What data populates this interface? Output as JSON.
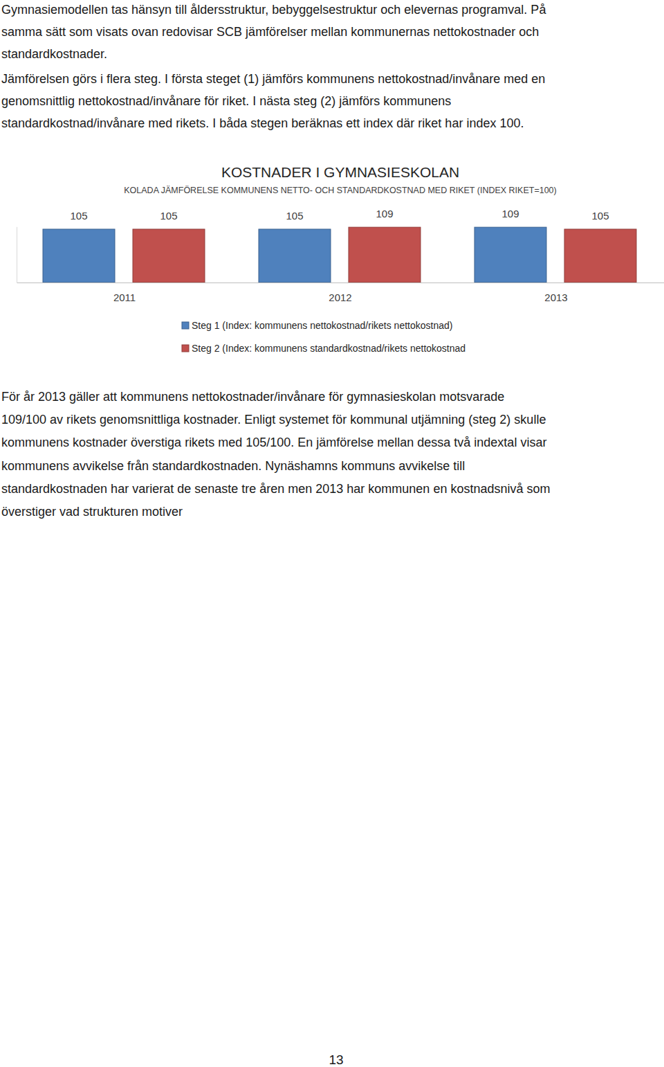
{
  "paragraphs_top": [
    [
      "Gymnasiemodellen tas hänsyn till åldersstruktur, bebyggelsestruktur och elevernas programval. På",
      "samma sätt som visats ovan redovisar SCB jämförelser mellan kommunernas nettokostnader och",
      "standardkostnader."
    ],
    [
      "Jämförelsen görs i flera steg. I första steget (1) jämförs kommunens nettokostnad/invånare med en",
      "genomsnittlig nettokostnad/invånare för riket. I nästa steg (2) jämförs kommunens",
      "standardkostnad/invånare med rikets. I båda stegen beräknas ett index där riket har index 100."
    ]
  ],
  "chart_data": {
    "type": "bar",
    "title": "KOSTNADER I GYMNASIESKOLAN",
    "subtitle": "KOLADA JÄMFÖRELSE KOMMUNENS NETTO- OCH STANDARDKOSTNAD MED RIKET (INDEX RIKET=100)",
    "categories": [
      "2011",
      "2012",
      "2013"
    ],
    "series": [
      {
        "name": "Steg 1 (Index: kommunens nettokostnad/rikets nettokostnad)",
        "color": "#4f81bd",
        "values": [
          105,
          105,
          109
        ]
      },
      {
        "name": "Steg 2 (Index: kommunens standardkostnad/rikets nettokostnad",
        "color": "#c0504d",
        "values": [
          105,
          109,
          105
        ]
      }
    ],
    "ylim": [
      0,
      110
    ],
    "tick_labels": "x",
    "data_labels": true,
    "legend": "bottom"
  },
  "paragraphs_bottom": [
    [
      "För år 2013 gäller att kommunens nettokostnader/invånare för gymnasieskolan motsvarade",
      "109/100 av rikets genomsnittliga kostnader. Enligt systemet för kommunal utjämning (steg 2) skulle",
      "kommunens kostnader överstiga rikets med 105/100.  En jämförelse mellan dessa två indextal visar",
      "kommunens avvikelse från standardkostnaden. Nynäshamns kommuns avvikelse till",
      "standardkostnaden har varierat de senaste tre åren men 2013 har kommunen en kostnadsnivå som",
      "överstiger vad strukturen motiver"
    ]
  ],
  "page_number": "13"
}
